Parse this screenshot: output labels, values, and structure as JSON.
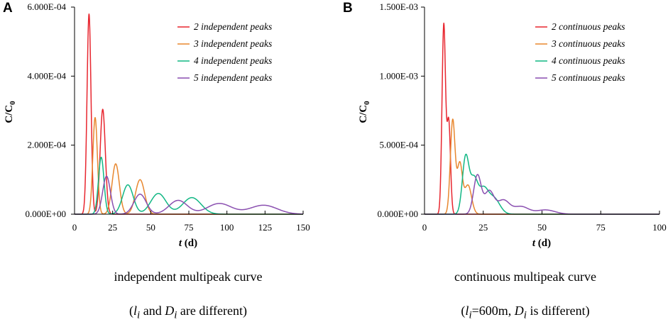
{
  "chart_data": [
    {
      "panel": "A",
      "type": "line",
      "xlabel": "t (d)",
      "xlabel_var": "t",
      "xlabel_unit": " (d)",
      "ylabel": "C/C0",
      "ylabel_main": "C/C",
      "ylabel_sub": "0",
      "xlim": [
        0,
        150
      ],
      "ylim": [
        0,
        0.0006
      ],
      "xticks": [
        0,
        25,
        50,
        75,
        100,
        125,
        150
      ],
      "xtick_labels": [
        "0",
        "25",
        "50",
        "75",
        "100",
        "125",
        "150"
      ],
      "yticks": [
        0,
        0.0002,
        0.0004,
        0.0006
      ],
      "ytick_labels": [
        "0.000E+00",
        "2.000E-04",
        "4.000E-04",
        "6.000E-04"
      ],
      "legend_position": "top-right",
      "series": [
        {
          "name": "2 independent peaks",
          "color": "#e8262f",
          "peaks": [
            {
              "t": 9.5,
              "h": 0.00058,
              "w": 1.3
            },
            {
              "t": 18.5,
              "h": 0.000304,
              "w": 1.7
            }
          ]
        },
        {
          "name": "3 independent peaks",
          "color": "#e8872f",
          "peaks": [
            {
              "t": 13.5,
              "h": 0.00028,
              "w": 1.5
            },
            {
              "t": 27,
              "h": 0.000146,
              "w": 2.4
            },
            {
              "t": 43,
              "h": 0.0001,
              "w": 3.0
            }
          ]
        },
        {
          "name": "4 independent peaks",
          "color": "#11b784",
          "peaks": [
            {
              "t": 17.5,
              "h": 0.000165,
              "w": 1.8
            },
            {
              "t": 35,
              "h": 8.5e-05,
              "w": 3.5
            },
            {
              "t": 55,
              "h": 6e-05,
              "w": 5.0
            },
            {
              "t": 77,
              "h": 4.8e-05,
              "w": 6.0
            }
          ]
        },
        {
          "name": "5 independent peaks",
          "color": "#8a4fb0",
          "peaks": [
            {
              "t": 21,
              "h": 0.00011,
              "w": 2.5
            },
            {
              "t": 43,
              "h": 5.8e-05,
              "w": 4.0
            },
            {
              "t": 68,
              "h": 4e-05,
              "w": 6.0
            },
            {
              "t": 95,
              "h": 3.1e-05,
              "w": 8.0
            },
            {
              "t": 124,
              "h": 2.6e-05,
              "w": 9.0
            }
          ]
        }
      ]
    },
    {
      "panel": "B",
      "type": "line",
      "xlabel": "t (d)",
      "xlabel_var": "t",
      "xlabel_unit": " (d)",
      "ylabel": "C/C0",
      "ylabel_main": "C/C",
      "ylabel_sub": "0",
      "xlim": [
        0,
        100
      ],
      "ylim": [
        0,
        0.0015
      ],
      "xticks": [
        0,
        25,
        50,
        75,
        100
      ],
      "xtick_labels": [
        "0",
        "25",
        "50",
        "75",
        "100"
      ],
      "yticks": [
        0,
        0.0005,
        0.001,
        0.0015
      ],
      "ytick_labels": [
        "0.000E+00",
        "5.000E-04",
        "1.000E-03",
        "1.500E-03"
      ],
      "legend_position": "top-right",
      "series": [
        {
          "name": "2 continuous peaks",
          "color": "#e8262f",
          "peaks": [
            {
              "t": 8.2,
              "h": 0.00137,
              "w": 0.75
            },
            {
              "t": 10.3,
              "h": 0.00067,
              "w": 0.75
            }
          ]
        },
        {
          "name": "3 continuous peaks",
          "color": "#e8872f",
          "peaks": [
            {
              "t": 12,
              "h": 0.00068,
              "w": 1.0
            },
            {
              "t": 15,
              "h": 0.00036,
              "w": 1.1
            },
            {
              "t": 18.5,
              "h": 0.00021,
              "w": 1.5
            }
          ]
        },
        {
          "name": "4 continuous peaks",
          "color": "#11b784",
          "peaks": [
            {
              "t": 17.5,
              "h": 0.00041,
              "w": 1.4
            },
            {
              "t": 21,
              "h": 0.00024,
              "w": 1.6
            },
            {
              "t": 25,
              "h": 0.00017,
              "w": 2.0
            },
            {
              "t": 29.5,
              "h": 0.000115,
              "w": 2.5
            }
          ]
        },
        {
          "name": "5 continuous peaks",
          "color": "#8a4fb0",
          "peaks": [
            {
              "t": 22.5,
              "h": 0.00028,
              "w": 1.6
            },
            {
              "t": 27.5,
              "h": 0.000165,
              "w": 2.0
            },
            {
              "t": 33.5,
              "h": 0.0001,
              "w": 2.6
            },
            {
              "t": 41,
              "h": 5.5e-05,
              "w": 3.2
            },
            {
              "t": 51.5,
              "h": 3.1e-05,
              "w": 4.0
            }
          ]
        }
      ]
    }
  ],
  "captions": {
    "A": {
      "title": "independent multipeak curve",
      "sub_open": "(",
      "sub_l": "l",
      "sub_i1": "i",
      "sub_and": " and ",
      "sub_D": "D",
      "sub_i2": "i",
      "sub_rest": " are different)"
    },
    "B": {
      "title": "continuous multipeak curve",
      "sub_open": "(",
      "sub_l": "l",
      "sub_i1": "i",
      "sub_eq": "=600m, ",
      "sub_D": "D",
      "sub_i2": "i",
      "sub_rest": " is different)"
    }
  }
}
